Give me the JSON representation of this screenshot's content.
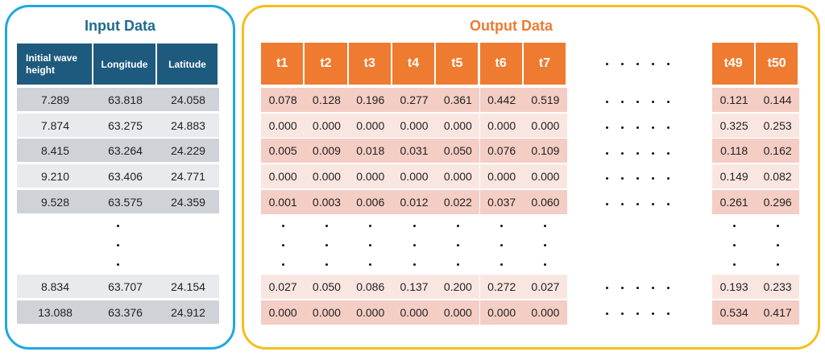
{
  "input": {
    "title": "Input Data",
    "headers": [
      "Initial wave height",
      "Longitude",
      "Latitude"
    ],
    "rows": [
      [
        "7.289",
        "63.818",
        "24.058"
      ],
      [
        "7.874",
        "63.275",
        "24.883"
      ],
      [
        "8.415",
        "63.264",
        "24.229"
      ],
      [
        "9.210",
        "63.406",
        "24.771"
      ],
      [
        "9.528",
        "63.575",
        "24.359"
      ],
      [
        "8.834",
        "63.707",
        "24.154"
      ],
      [
        "13.088",
        "63.376",
        "24.912"
      ]
    ]
  },
  "output": {
    "title": "Output Data",
    "headers_left": [
      "t1",
      "t2",
      "t3",
      "t4",
      "t5",
      "t6",
      "t7"
    ],
    "headers_right": [
      "t49",
      "t50"
    ],
    "rows_left": [
      [
        "0.078",
        "0.128",
        "0.196",
        "0.277",
        "0.361",
        "0.442",
        "0.519"
      ],
      [
        "0.000",
        "0.000",
        "0.000",
        "0.000",
        "0.000",
        "0.000",
        "0.000"
      ],
      [
        "0.005",
        "0.009",
        "0.018",
        "0.031",
        "0.050",
        "0.076",
        "0.109"
      ],
      [
        "0.000",
        "0.000",
        "0.000",
        "0.000",
        "0.000",
        "0.000",
        "0.000"
      ],
      [
        "0.001",
        "0.003",
        "0.006",
        "0.012",
        "0.022",
        "0.037",
        "0.060"
      ],
      [
        "0.027",
        "0.050",
        "0.086",
        "0.137",
        "0.200",
        "0.272",
        "0.027"
      ],
      [
        "0.000",
        "0.000",
        "0.000",
        "0.000",
        "0.000",
        "0.000",
        "0.000"
      ]
    ],
    "rows_right": [
      [
        "0.121",
        "0.144"
      ],
      [
        "0.325",
        "0.253"
      ],
      [
        "0.118",
        "0.162"
      ],
      [
        "0.149",
        "0.082"
      ],
      [
        "0.261",
        "0.296"
      ],
      [
        "0.193",
        "0.233"
      ],
      [
        "0.534",
        "0.417"
      ]
    ]
  }
}
